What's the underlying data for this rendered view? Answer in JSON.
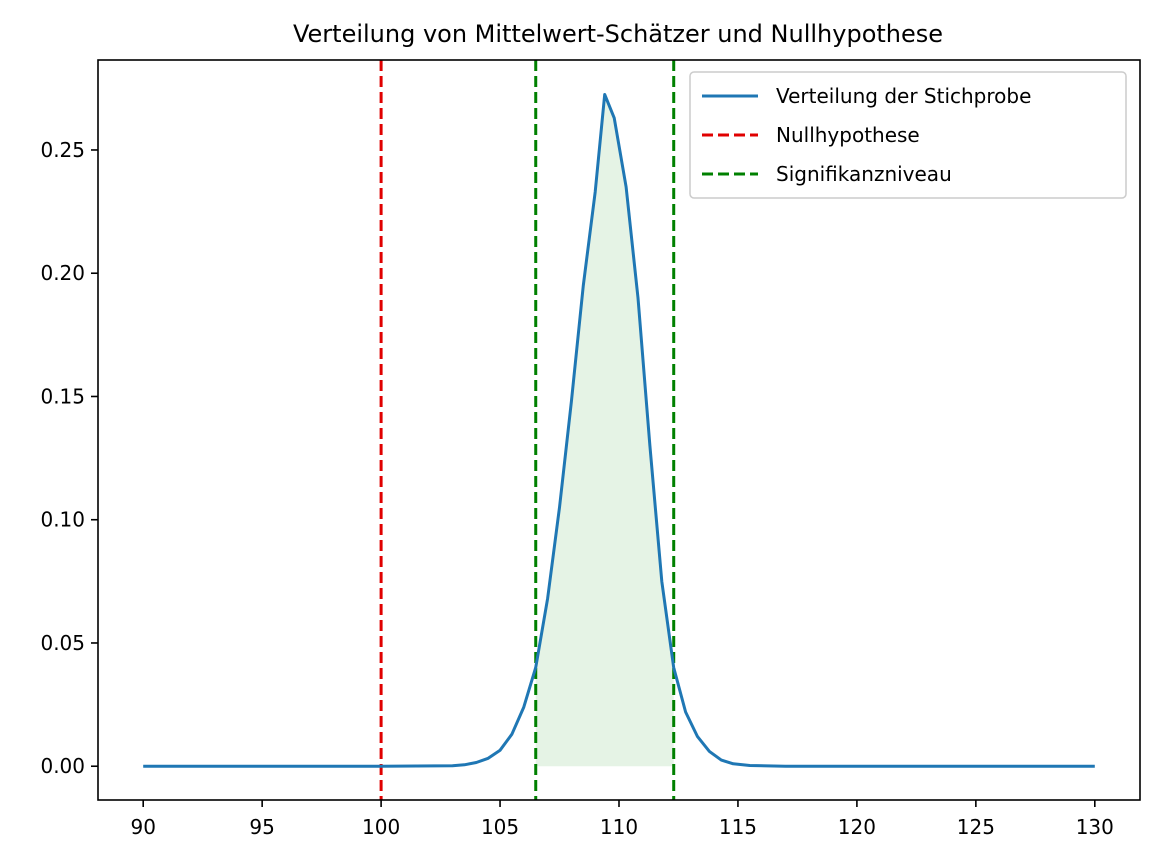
{
  "chart_data": {
    "type": "line",
    "title": "Verteilung von Mittelwert-Schätzer und Nullhypothese",
    "xlabel": "",
    "ylabel": "",
    "xlim": [
      88.1,
      131.9
    ],
    "ylim": [
      -0.0137,
      0.2865
    ],
    "x_ticks": [
      90,
      95,
      100,
      105,
      110,
      115,
      120,
      125,
      130
    ],
    "x_tick_labels": [
      "90",
      "95",
      "100",
      "105",
      "110",
      "115",
      "120",
      "125",
      "130"
    ],
    "y_ticks": [
      0.0,
      0.05,
      0.1,
      0.15,
      0.2,
      0.25
    ],
    "y_tick_labels": [
      "0.00",
      "0.05",
      "0.10",
      "0.15",
      "0.20",
      "0.25"
    ],
    "grid": false,
    "legend_position": "top-right",
    "series": [
      {
        "name": "Verteilung der Stichprobe",
        "style": "solid",
        "color": "#1f77b4",
        "x": [
          90,
          100,
          103,
          103.5,
          104,
          104.5,
          105,
          105.5,
          106,
          106.5,
          107,
          107.5,
          108,
          108.5,
          109,
          109.4,
          109.8,
          110.3,
          110.8,
          111.3,
          111.8,
          112.3,
          112.8,
          113.3,
          113.8,
          114.3,
          114.8,
          115.5,
          117,
          130
        ],
        "y": [
          0.0,
          0.0,
          0.0002,
          0.0006,
          0.0015,
          0.0032,
          0.0065,
          0.013,
          0.024,
          0.04,
          0.068,
          0.105,
          0.148,
          0.195,
          0.233,
          0.2725,
          0.263,
          0.235,
          0.19,
          0.13,
          0.075,
          0.04,
          0.022,
          0.012,
          0.006,
          0.0025,
          0.001,
          0.0003,
          0.0,
          0.0
        ]
      },
      {
        "name": "Nullhypothese",
        "style": "dashed",
        "color": "#e00000",
        "x_value": 100
      },
      {
        "name": "Signifikanzniveau",
        "style": "dashed",
        "color": "#008000",
        "x_values": [
          106.5,
          112.3
        ]
      }
    ],
    "shaded_region": {
      "x_from": 106.5,
      "x_to": 112.3,
      "color": "#2ca02c",
      "opacity": 0.12
    }
  }
}
